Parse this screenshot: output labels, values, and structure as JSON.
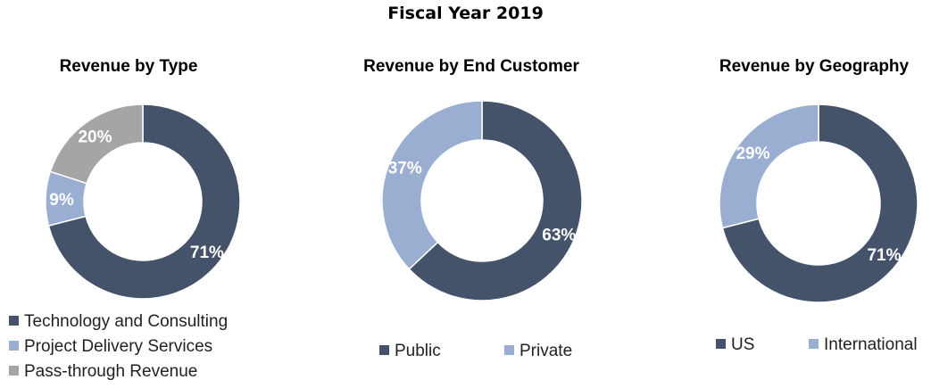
{
  "title": "Fiscal Year 2019",
  "chart_data": [
    {
      "type": "pie",
      "title": "Revenue by Type",
      "categories": [
        "Technology and Consulting",
        "Project Delivery Services",
        "Pass-through Revenue"
      ],
      "values": [
        71,
        9,
        20
      ],
      "labels": [
        "71%",
        "9%",
        "20%"
      ],
      "colors": [
        "#44536a",
        "#9aaed2",
        "#a5a5a5"
      ]
    },
    {
      "type": "pie",
      "title": "Revenue by End Customer",
      "categories": [
        "Public",
        "Private"
      ],
      "values": [
        63,
        37
      ],
      "labels": [
        "63%",
        "37%"
      ],
      "colors": [
        "#44536a",
        "#9aaed2"
      ]
    },
    {
      "type": "pie",
      "title": "Revenue by Geography",
      "categories": [
        "US",
        "International"
      ],
      "values": [
        71,
        29
      ],
      "labels": [
        "71%",
        "29%"
      ],
      "colors": [
        "#44536a",
        "#9aaed2"
      ]
    }
  ]
}
